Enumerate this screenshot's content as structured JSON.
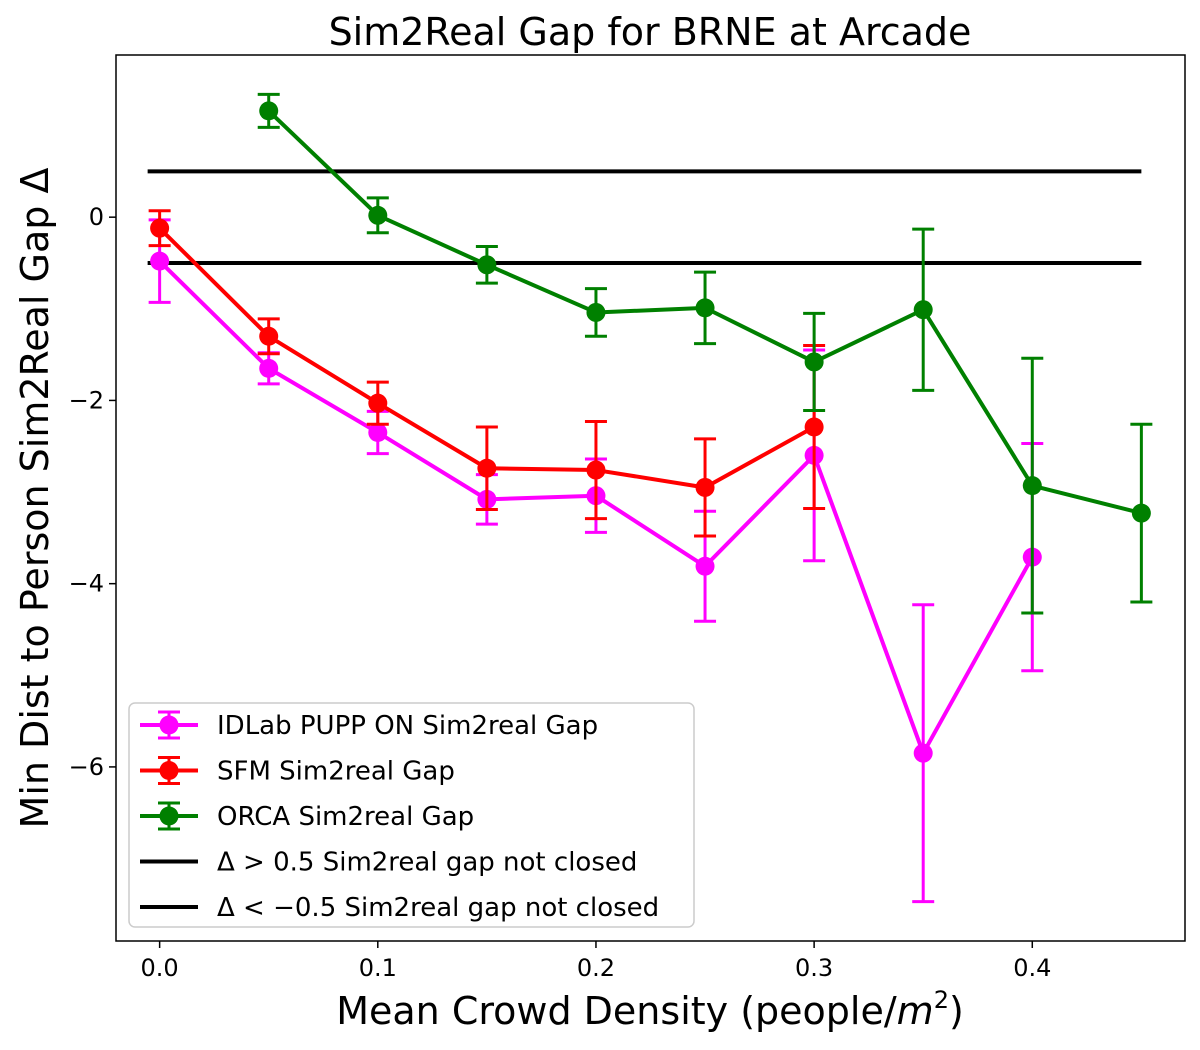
{
  "chart_data": {
    "type": "line",
    "title": "Sim2Real Gap for BRNE at Arcade",
    "xlabel": "Mean Crowd Density (people/",
    "xlabel_unit": "m",
    "xlabel_exp": "2",
    "xlabel_close": ")",
    "ylabel": "Min Dist to Person Sim2Real Gap Δ",
    "xlim": [
      -0.02,
      0.47
    ],
    "ylim": [
      -7.9,
      1.77
    ],
    "xticks": [
      0.0,
      0.1,
      0.2,
      0.3,
      0.4
    ],
    "xtick_labels": [
      "0.0",
      "0.1",
      "0.2",
      "0.3",
      "0.4"
    ],
    "yticks": [
      0,
      -2,
      -4,
      -6
    ],
    "ytick_labels": [
      "0",
      "−2",
      "−4",
      "−6"
    ],
    "grid": false,
    "legend_position": "lower-left",
    "series": [
      {
        "name": "IDLab PUPP ON Sim2real Gap",
        "color": "#ff00ff",
        "x": [
          0.0,
          0.05,
          0.1,
          0.15,
          0.2,
          0.25,
          0.3,
          0.35,
          0.4
        ],
        "y": [
          -0.48,
          -1.65,
          -2.35,
          -3.08,
          -3.04,
          -3.81,
          -2.6,
          -5.85,
          -3.71
        ],
        "err": [
          0.45,
          0.17,
          0.23,
          0.27,
          0.4,
          0.6,
          1.15,
          1.62,
          1.24
        ]
      },
      {
        "name": "SFM Sim2real Gap",
        "color": "#ff0000",
        "x": [
          0.0,
          0.05,
          0.1,
          0.15,
          0.2,
          0.25,
          0.3
        ],
        "y": [
          -0.12,
          -1.3,
          -2.03,
          -2.74,
          -2.76,
          -2.95,
          -2.29
        ],
        "err": [
          0.19,
          0.19,
          0.23,
          0.45,
          0.53,
          0.53,
          0.89
        ]
      },
      {
        "name": "ORCA Sim2real Gap",
        "color": "#008000",
        "x": [
          0.05,
          0.1,
          0.15,
          0.2,
          0.25,
          0.3,
          0.35,
          0.4,
          0.45
        ],
        "y": [
          1.16,
          0.02,
          -0.52,
          -1.04,
          -0.99,
          -1.58,
          -1.01,
          -2.93,
          -3.23
        ],
        "err": [
          0.18,
          0.19,
          0.2,
          0.26,
          0.39,
          0.53,
          0.88,
          1.39,
          0.97
        ]
      }
    ],
    "hlines": [
      {
        "name": "Δ > 0.5 Sim2real gap not closed",
        "y": 0.5,
        "color": "#000000"
      },
      {
        "name": "Δ < −0.5 Sim2real gap not closed",
        "y": -0.5,
        "color": "#000000"
      }
    ]
  }
}
